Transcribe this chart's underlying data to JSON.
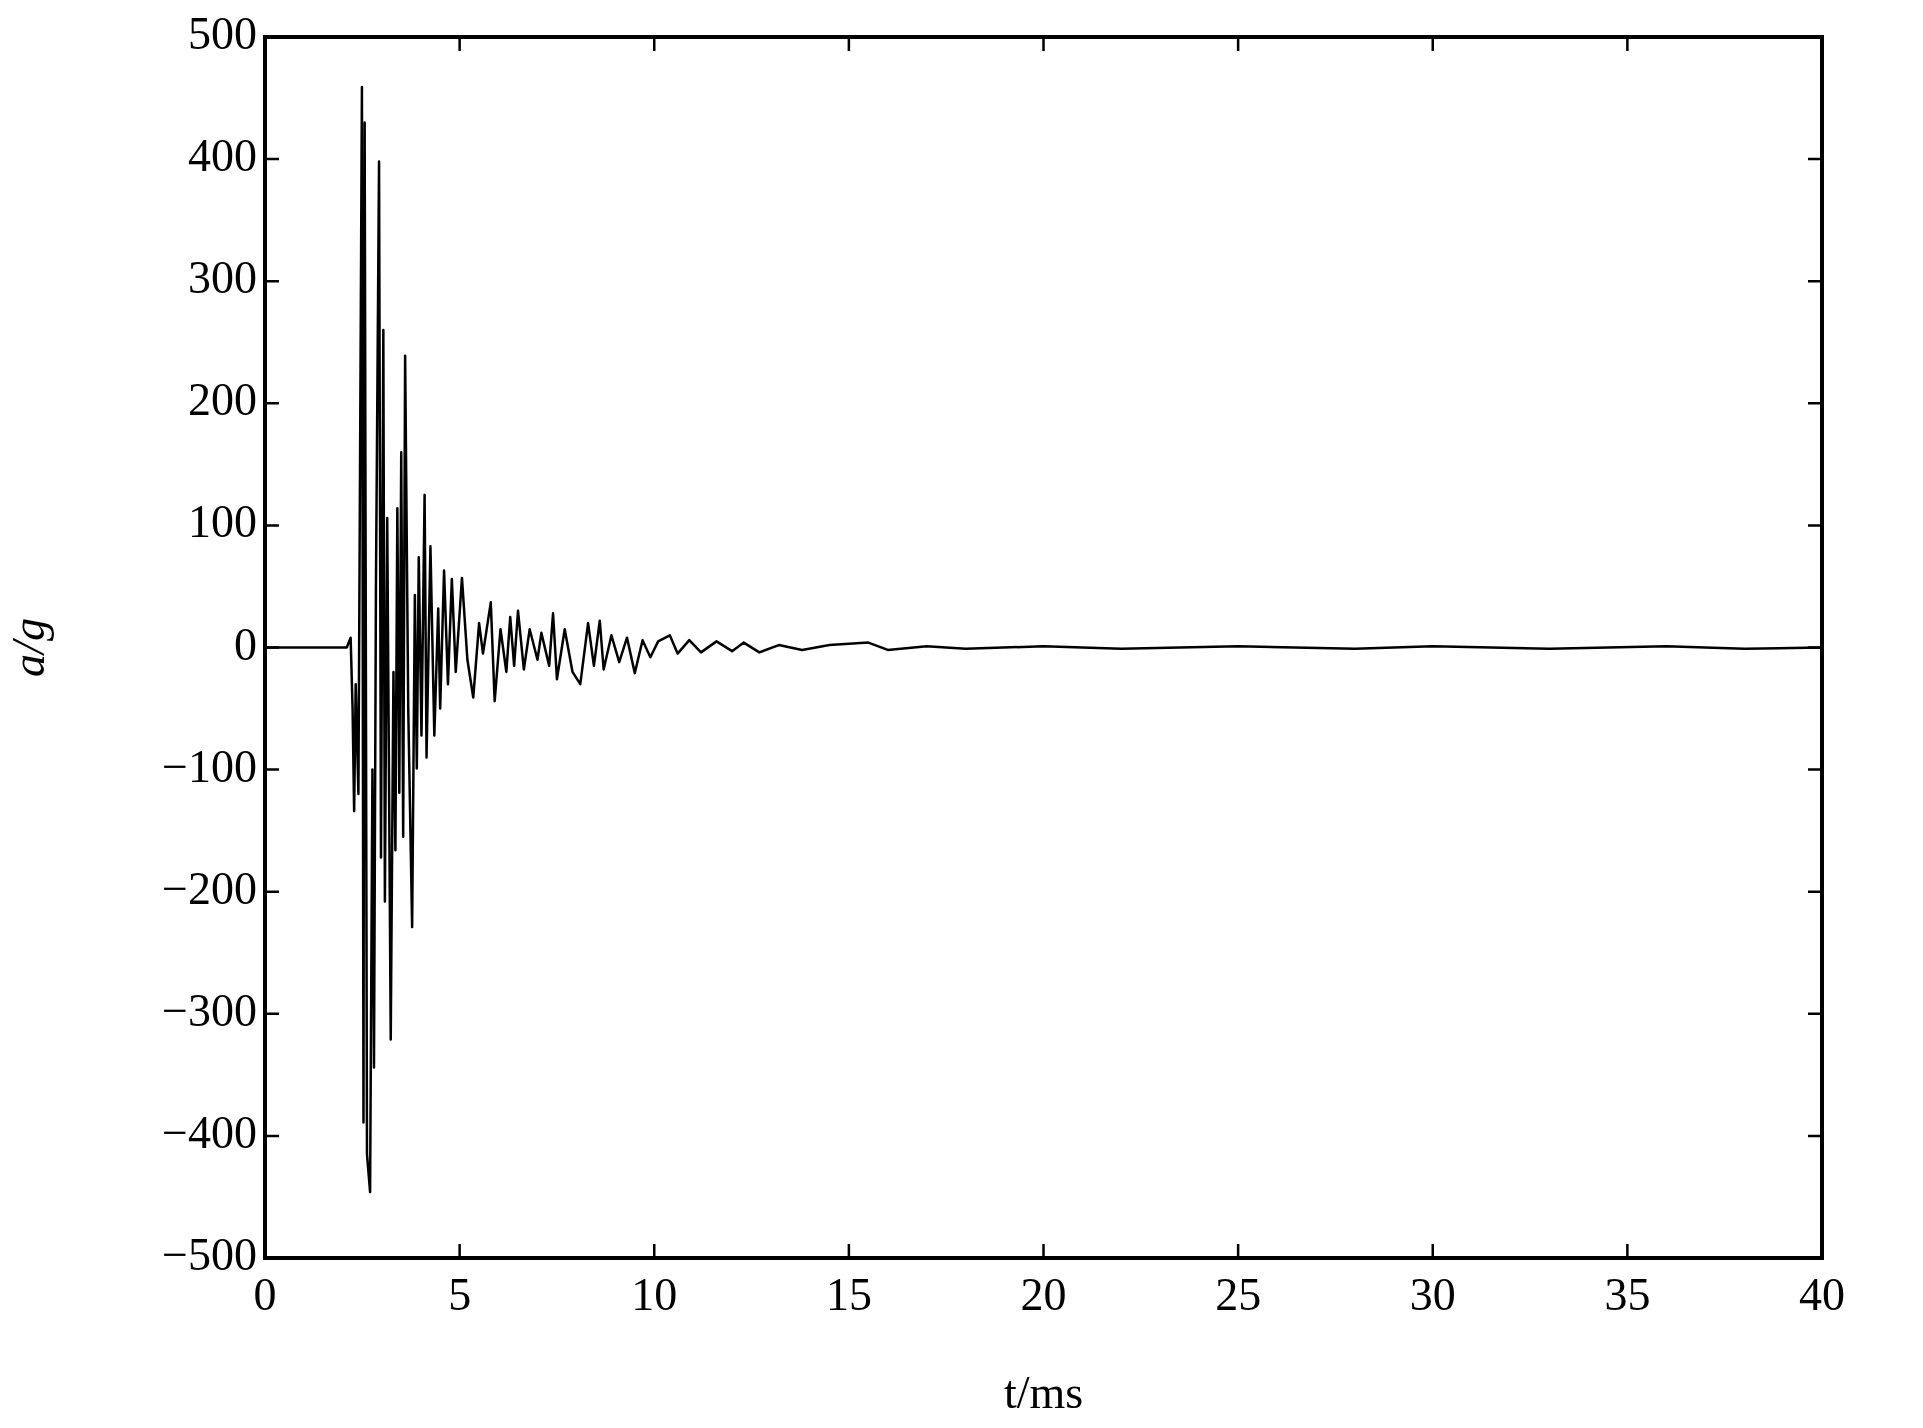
{
  "chart_data": {
    "type": "line",
    "xlabel": "t/ms",
    "ylabel": "a/g",
    "xlim": [
      0,
      40
    ],
    "xticks": [
      0,
      5,
      10,
      15,
      20,
      25,
      30,
      35,
      40
    ],
    "ylim": [
      -500,
      500
    ],
    "yticks": [
      -500,
      -400,
      -300,
      -200,
      -100,
      0,
      100,
      200,
      300,
      400,
      500
    ],
    "grid": false,
    "legend": false,
    "series": [
      {
        "color": "#000000",
        "x": [
          0,
          2.1,
          2.2,
          2.25,
          2.29,
          2.33,
          2.4,
          2.49,
          2.53,
          2.56,
          2.62,
          2.7,
          2.76,
          2.8,
          2.85,
          2.93,
          2.98,
          3.04,
          3.08,
          3.14,
          3.18,
          3.23,
          3.3,
          3.35,
          3.4,
          3.45,
          3.5,
          3.55,
          3.6,
          3.68,
          3.78,
          3.85,
          3.9,
          3.95,
          4.02,
          4.1,
          4.15,
          4.25,
          4.35,
          4.45,
          4.5,
          4.6,
          4.7,
          4.8,
          4.9,
          5.06,
          5.2,
          5.35,
          5.5,
          5.6,
          5.8,
          5.9,
          6.05,
          6.2,
          6.3,
          6.4,
          6.5,
          6.65,
          6.8,
          7.0,
          7.1,
          7.3,
          7.4,
          7.5,
          7.7,
          7.9,
          8.1,
          8.3,
          8.45,
          8.6,
          8.7,
          8.9,
          9.1,
          9.3,
          9.5,
          9.7,
          9.9,
          10.1,
          10.4,
          10.6,
          10.9,
          11.2,
          11.6,
          12,
          12.3,
          12.7,
          13.2,
          13.8,
          14.5,
          15.5,
          16,
          17,
          18,
          20,
          22,
          25,
          28,
          30,
          33,
          36,
          38,
          40
        ],
        "values": [
          0,
          0,
          8,
          -50,
          -134,
          -30,
          -120,
          459,
          -389,
          430,
          -415,
          -446,
          -100,
          -344,
          50,
          398,
          -172,
          260,
          -208,
          106,
          -80,
          -321,
          -20,
          -166,
          114,
          -119,
          160,
          -155,
          239,
          -50,
          -229,
          43,
          -99,
          74,
          -72,
          125,
          -90,
          83,
          -72,
          32,
          -50,
          63,
          -30,
          56,
          -20,
          57,
          -10,
          -41,
          20,
          -5,
          37,
          -44,
          15,
          -20,
          25,
          -15,
          30,
          -18,
          15,
          -10,
          12,
          -15,
          28,
          -26,
          15,
          -20,
          -30,
          20,
          -15,
          22,
          -18,
          10,
          -12,
          8,
          -21,
          6,
          -8,
          5,
          10,
          -5,
          6,
          -4,
          5,
          -3,
          4,
          -4,
          2,
          -2,
          2,
          4,
          -2,
          1,
          -1,
          1,
          -1,
          1,
          -1,
          1,
          -1,
          1,
          -1,
          0
        ]
      }
    ]
  }
}
